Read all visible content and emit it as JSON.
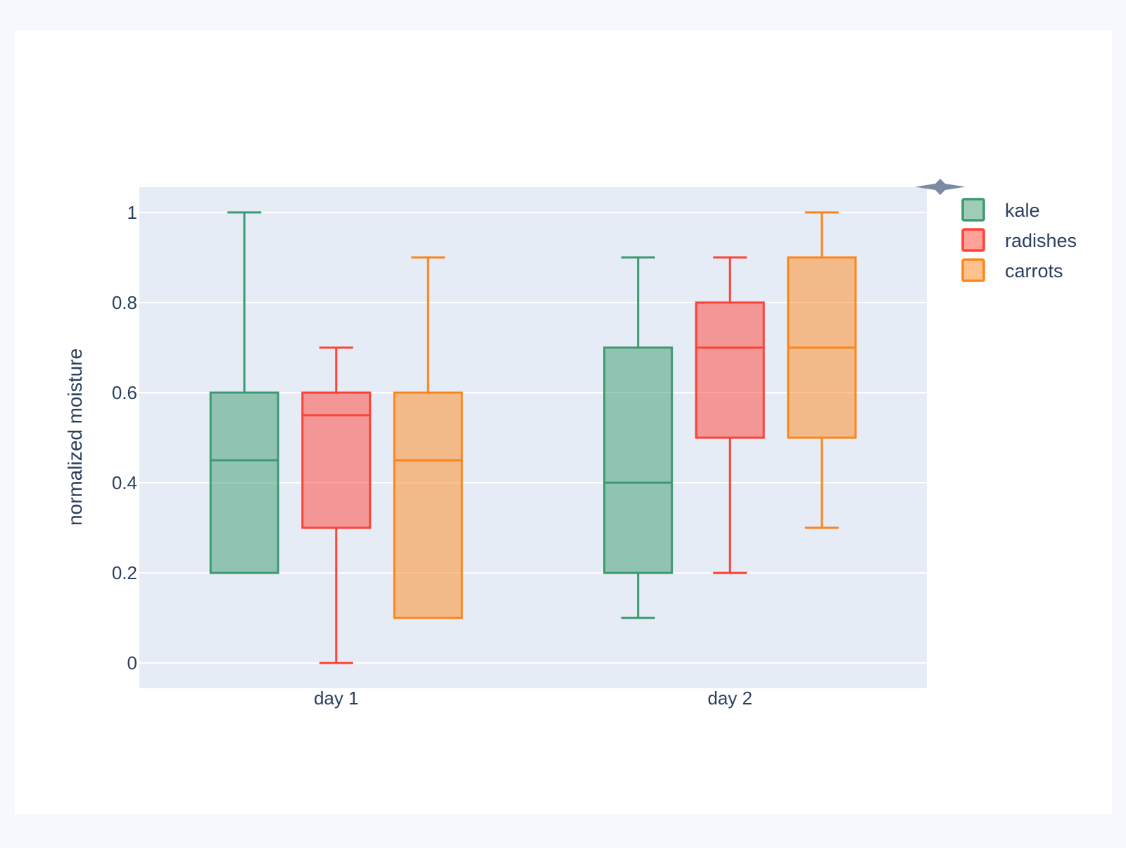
{
  "page": {
    "background": "#f7f8fd",
    "card_background": "#ffffff"
  },
  "chart_data": {
    "type": "box",
    "title": "",
    "xlabel": "",
    "ylabel": "normalized moisture",
    "categories": [
      "day 1",
      "day 2"
    ],
    "yticks": [
      0,
      0.2,
      0.4,
      0.6,
      0.8,
      1
    ],
    "ytick_labels": [
      "0",
      "0.2",
      "0.4",
      "0.6",
      "0.8",
      "1"
    ],
    "ylim": [
      -0.056,
      1.056
    ],
    "grid": true,
    "plot_bgcolor": "#e5ecf6",
    "gridcolor": "#ffffff",
    "text_color": "#2a3f5f",
    "modebar_icon_color": "#7a8aa0",
    "legend": {
      "position": "top-right"
    },
    "series": [
      {
        "name": "kale",
        "color": "#3d9970",
        "boxes": [
          {
            "category": "day 1",
            "whisker_low": 0.2,
            "q1": 0.2,
            "median": 0.45,
            "q3": 0.6,
            "whisker_high": 1.0
          },
          {
            "category": "day 2",
            "whisker_low": 0.1,
            "q1": 0.2,
            "median": 0.4,
            "q3": 0.7,
            "whisker_high": 0.9
          }
        ]
      },
      {
        "name": "radishes",
        "color": "#ff4136",
        "boxes": [
          {
            "category": "day 1",
            "whisker_low": 0.0,
            "q1": 0.3,
            "median": 0.55,
            "q3": 0.6,
            "whisker_high": 0.7
          },
          {
            "category": "day 2",
            "whisker_low": 0.2,
            "q1": 0.5,
            "median": 0.7,
            "q3": 0.8,
            "whisker_high": 0.9
          }
        ]
      },
      {
        "name": "carrots",
        "color": "#ff851b",
        "boxes": [
          {
            "category": "day 1",
            "whisker_low": 0.1,
            "q1": 0.1,
            "median": 0.45,
            "q3": 0.6,
            "whisker_high": 0.9
          },
          {
            "category": "day 2",
            "whisker_low": 0.3,
            "q1": 0.5,
            "median": 0.7,
            "q3": 0.9,
            "whisker_high": 1.0
          }
        ]
      }
    ]
  }
}
